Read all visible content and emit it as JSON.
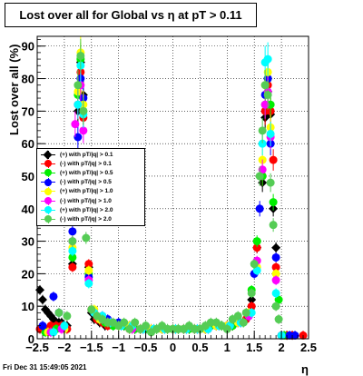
{
  "chart_data": {
    "type": "scatter",
    "title": "Lost over all for Global vs    η at pT > 0.11",
    "xlabel": "η",
    "ylabel": "Lost over all (%)",
    "xlim": [
      -2.5,
      2.5
    ],
    "ylim": [
      0,
      93
    ],
    "x_ticks": [
      "-2.5",
      "-2",
      "-1.5",
      "-1",
      "-0.5",
      "0",
      "0.5",
      "1",
      "1.5",
      "2",
      "2.5"
    ],
    "y_ticks": [
      "0",
      "10",
      "20",
      "30",
      "40",
      "50",
      "60",
      "70",
      "80",
      "90"
    ],
    "grid": true,
    "legend_position": "middle-left",
    "series": [
      {
        "name": "(+) with pT/|q| > 0.1",
        "color": "#000000",
        "marker": "diamond",
        "points": [
          [
            -2.45,
            15
          ],
          [
            -2.4,
            12
          ],
          [
            -2.35,
            9
          ],
          [
            -2.3,
            8
          ],
          [
            -2.25,
            7
          ],
          [
            -2.2,
            6
          ],
          [
            -2.15,
            5
          ],
          [
            -2.1,
            5
          ],
          [
            -2.05,
            5
          ],
          [
            -1.95,
            4
          ],
          [
            -1.85,
            23
          ],
          [
            -1.75,
            70
          ],
          [
            -1.7,
            85
          ],
          [
            -1.65,
            75
          ],
          [
            -1.55,
            22
          ],
          [
            -1.5,
            8
          ],
          [
            -1.45,
            6
          ],
          [
            -1.35,
            5
          ],
          [
            -1.25,
            4
          ],
          [
            -1.1,
            4
          ],
          [
            -0.9,
            4
          ],
          [
            -0.7,
            3
          ],
          [
            -0.5,
            3
          ],
          [
            -0.3,
            3
          ],
          [
            -0.1,
            3
          ],
          [
            0.1,
            3
          ],
          [
            0.3,
            3
          ],
          [
            0.5,
            3
          ],
          [
            0.7,
            4
          ],
          [
            0.9,
            4
          ],
          [
            1.1,
            4
          ],
          [
            1.25,
            5
          ],
          [
            1.35,
            6
          ],
          [
            1.45,
            12
          ],
          [
            1.55,
            28
          ],
          [
            1.65,
            48
          ],
          [
            1.7,
            68
          ],
          [
            1.75,
            76
          ],
          [
            1.8,
            69
          ],
          [
            1.85,
            40
          ],
          [
            1.9,
            28
          ],
          [
            2.0,
            1
          ],
          [
            2.1,
            1
          ],
          [
            2.2,
            1
          ]
        ]
      },
      {
        "name": "(-) with pT/|q| > 0.1",
        "color": "#ff0000",
        "marker": "circle",
        "points": [
          [
            -2.45,
            3
          ],
          [
            -2.35,
            3
          ],
          [
            -2.25,
            4
          ],
          [
            -2.15,
            4
          ],
          [
            -2.05,
            4
          ],
          [
            -1.95,
            3
          ],
          [
            -1.85,
            22
          ],
          [
            -1.75,
            72
          ],
          [
            -1.7,
            82
          ],
          [
            -1.65,
            68
          ],
          [
            -1.55,
            23
          ],
          [
            -1.5,
            9
          ],
          [
            -1.4,
            6
          ],
          [
            -1.3,
            5
          ],
          [
            -1.2,
            4
          ],
          [
            -1.0,
            4
          ],
          [
            -0.8,
            3
          ],
          [
            -0.6,
            3
          ],
          [
            -0.4,
            3
          ],
          [
            -0.2,
            3
          ],
          [
            0.0,
            3
          ],
          [
            0.2,
            3
          ],
          [
            0.4,
            3
          ],
          [
            0.6,
            3
          ],
          [
            0.8,
            4
          ],
          [
            1.0,
            4
          ],
          [
            1.2,
            5
          ],
          [
            1.35,
            6
          ],
          [
            1.45,
            10
          ],
          [
            1.55,
            28
          ],
          [
            1.65,
            50
          ],
          [
            1.7,
            70
          ],
          [
            1.75,
            78
          ],
          [
            1.8,
            70
          ],
          [
            1.85,
            55
          ],
          [
            1.9,
            22
          ],
          [
            2.0,
            1
          ],
          [
            2.1,
            1
          ],
          [
            2.2,
            1
          ],
          [
            2.4,
            1
          ]
        ]
      },
      {
        "name": "(+) with pT/|q| > 0.5",
        "color": "#00ee00",
        "marker": "circle",
        "points": [
          [
            -2.35,
            2
          ],
          [
            -2.15,
            3
          ],
          [
            -2.0,
            3
          ],
          [
            -1.85,
            25
          ],
          [
            -1.75,
            75
          ],
          [
            -1.7,
            86
          ],
          [
            -1.65,
            70
          ],
          [
            -1.55,
            20
          ],
          [
            -1.45,
            8
          ],
          [
            -1.35,
            6
          ],
          [
            -1.25,
            5
          ],
          [
            -1.1,
            4
          ],
          [
            -0.9,
            4
          ],
          [
            -0.7,
            3
          ],
          [
            -0.5,
            3
          ],
          [
            -0.3,
            3
          ],
          [
            -0.1,
            3
          ],
          [
            0.1,
            3
          ],
          [
            0.3,
            3
          ],
          [
            0.5,
            3
          ],
          [
            0.7,
            4
          ],
          [
            0.9,
            4
          ],
          [
            1.1,
            4
          ],
          [
            1.3,
            5
          ],
          [
            1.45,
            15
          ],
          [
            1.55,
            30
          ],
          [
            1.65,
            50
          ],
          [
            1.7,
            72
          ],
          [
            1.75,
            80
          ],
          [
            1.8,
            72
          ],
          [
            1.85,
            42
          ],
          [
            1.95,
            12
          ],
          [
            2.05,
            1
          ]
        ]
      },
      {
        "name": "(-) with pT/|q| > 0.5",
        "color": "#0000ff",
        "marker": "circle",
        "points": [
          [
            -2.4,
            4
          ],
          [
            -2.2,
            13
          ],
          [
            -2.1,
            8
          ],
          [
            -1.85,
            33
          ],
          [
            -1.75,
            62
          ],
          [
            -1.7,
            80
          ],
          [
            -1.65,
            74
          ],
          [
            -1.55,
            19
          ],
          [
            -1.45,
            8
          ],
          [
            -1.3,
            7
          ],
          [
            -1.2,
            6
          ],
          [
            -1.0,
            5
          ],
          [
            -0.8,
            4
          ],
          [
            -0.6,
            3
          ],
          [
            -0.4,
            3
          ],
          [
            -0.2,
            3
          ],
          [
            0.0,
            3
          ],
          [
            0.2,
            3
          ],
          [
            0.4,
            3
          ],
          [
            0.6,
            3
          ],
          [
            0.8,
            4
          ],
          [
            1.0,
            4
          ],
          [
            1.2,
            5
          ],
          [
            1.4,
            7
          ],
          [
            1.5,
            20
          ],
          [
            1.6,
            40
          ],
          [
            1.7,
            75
          ],
          [
            1.75,
            80
          ],
          [
            1.8,
            60
          ],
          [
            1.9,
            25
          ],
          [
            2.0,
            1
          ],
          [
            2.15,
            1
          ],
          [
            2.25,
            1
          ]
        ]
      },
      {
        "name": "(+) with pT/|q| > 1.0",
        "color": "#ffff00",
        "marker": "circle",
        "points": [
          [
            -2.3,
            2
          ],
          [
            -2.0,
            3
          ],
          [
            -1.85,
            28
          ],
          [
            -1.75,
            76
          ],
          [
            -1.7,
            88
          ],
          [
            -1.65,
            72
          ],
          [
            -1.55,
            21
          ],
          [
            -1.45,
            9
          ],
          [
            -1.35,
            6
          ],
          [
            -1.2,
            5
          ],
          [
            -1.0,
            4
          ],
          [
            -0.8,
            4
          ],
          [
            -0.6,
            3
          ],
          [
            -0.4,
            3
          ],
          [
            -0.2,
            3
          ],
          [
            0.0,
            3
          ],
          [
            0.2,
            3
          ],
          [
            0.4,
            3
          ],
          [
            0.6,
            3
          ],
          [
            0.8,
            4
          ],
          [
            1.0,
            4
          ],
          [
            1.2,
            5
          ],
          [
            1.4,
            8
          ],
          [
            1.55,
            22
          ],
          [
            1.65,
            55
          ],
          [
            1.7,
            78
          ],
          [
            1.75,
            82
          ],
          [
            1.8,
            65
          ],
          [
            1.9,
            20
          ],
          [
            2.0,
            1
          ]
        ]
      },
      {
        "name": "(-) with pT/|q| > 1.0",
        "color": "#ff00ff",
        "marker": "circle",
        "points": [
          [
            -2.25,
            2
          ],
          [
            -2.05,
            3
          ],
          [
            -1.85,
            30
          ],
          [
            -1.8,
            66
          ],
          [
            -1.75,
            72
          ],
          [
            -1.7,
            78
          ],
          [
            -1.65,
            64
          ],
          [
            -1.55,
            18
          ],
          [
            -1.45,
            8
          ],
          [
            -1.3,
            6
          ],
          [
            -1.15,
            5
          ],
          [
            -0.95,
            4
          ],
          [
            -0.75,
            3
          ],
          [
            -0.55,
            3
          ],
          [
            -0.35,
            3
          ],
          [
            -0.15,
            3
          ],
          [
            0.05,
            3
          ],
          [
            0.25,
            3
          ],
          [
            0.45,
            3
          ],
          [
            0.65,
            3
          ],
          [
            0.85,
            4
          ],
          [
            1.05,
            4
          ],
          [
            1.25,
            5
          ],
          [
            1.4,
            7
          ],
          [
            1.55,
            24
          ],
          [
            1.65,
            52
          ],
          [
            1.7,
            72
          ],
          [
            1.75,
            76
          ],
          [
            1.8,
            62
          ],
          [
            1.9,
            18
          ],
          [
            2.0,
            1
          ]
        ]
      },
      {
        "name": "(+) with pT/|q| > 2.0",
        "color": "#00ffff",
        "marker": "circle",
        "points": [
          [
            -2.2,
            2
          ],
          [
            -2.0,
            4
          ],
          [
            -1.85,
            27
          ],
          [
            -1.75,
            72
          ],
          [
            -1.7,
            84
          ],
          [
            -1.65,
            69
          ],
          [
            -1.55,
            17
          ],
          [
            -1.45,
            8
          ],
          [
            -1.3,
            7
          ],
          [
            -1.15,
            5
          ],
          [
            -0.95,
            4
          ],
          [
            -0.75,
            4
          ],
          [
            -0.55,
            3
          ],
          [
            -0.35,
            3
          ],
          [
            -0.15,
            3
          ],
          [
            0.05,
            3
          ],
          [
            0.25,
            3
          ],
          [
            0.45,
            3
          ],
          [
            0.65,
            3
          ],
          [
            0.85,
            4
          ],
          [
            1.05,
            4
          ],
          [
            1.25,
            5
          ],
          [
            1.45,
            8
          ],
          [
            1.55,
            21
          ],
          [
            1.65,
            60
          ],
          [
            1.7,
            85
          ],
          [
            1.75,
            86
          ],
          [
            1.8,
            63
          ],
          [
            1.9,
            14
          ],
          [
            2.0,
            1
          ]
        ]
      },
      {
        "name": "(-) with pT/|q| > 2.0",
        "color": "#55cc55",
        "marker": "circle",
        "points": [
          [
            -2.1,
            8
          ],
          [
            -1.95,
            7
          ],
          [
            -1.85,
            30
          ],
          [
            -1.75,
            78
          ],
          [
            -1.7,
            87
          ],
          [
            -1.65,
            70
          ],
          [
            -1.6,
            31
          ],
          [
            -1.5,
            9
          ],
          [
            -1.4,
            7
          ],
          [
            -1.3,
            6
          ],
          [
            -1.2,
            5
          ],
          [
            -1.1,
            5
          ],
          [
            -1.0,
            4
          ],
          [
            -0.9,
            5
          ],
          [
            -0.8,
            3
          ],
          [
            -0.7,
            5
          ],
          [
            -0.6,
            3
          ],
          [
            -0.5,
            4
          ],
          [
            -0.4,
            2
          ],
          [
            -0.3,
            3
          ],
          [
            -0.2,
            4
          ],
          [
            -0.1,
            3
          ],
          [
            0.0,
            3
          ],
          [
            0.1,
            3
          ],
          [
            0.2,
            3
          ],
          [
            0.3,
            4
          ],
          [
            0.4,
            3
          ],
          [
            0.5,
            3
          ],
          [
            0.6,
            4
          ],
          [
            0.7,
            5
          ],
          [
            0.8,
            5
          ],
          [
            0.9,
            4
          ],
          [
            1.0,
            3
          ],
          [
            1.1,
            6
          ],
          [
            1.2,
            7
          ],
          [
            1.3,
            5
          ],
          [
            1.35,
            8
          ],
          [
            1.45,
            14
          ],
          [
            1.5,
            23
          ],
          [
            1.6,
            50
          ],
          [
            1.65,
            64
          ],
          [
            1.7,
            78
          ],
          [
            1.75,
            75
          ],
          [
            1.8,
            48
          ],
          [
            1.85,
            35
          ],
          [
            1.9,
            10
          ],
          [
            1.95,
            6
          ]
        ]
      }
    ]
  },
  "title": "Lost over all for Global vs    η at pT > 0.11",
  "timestamp": "Fri Dec 31 15:49:05 2021"
}
